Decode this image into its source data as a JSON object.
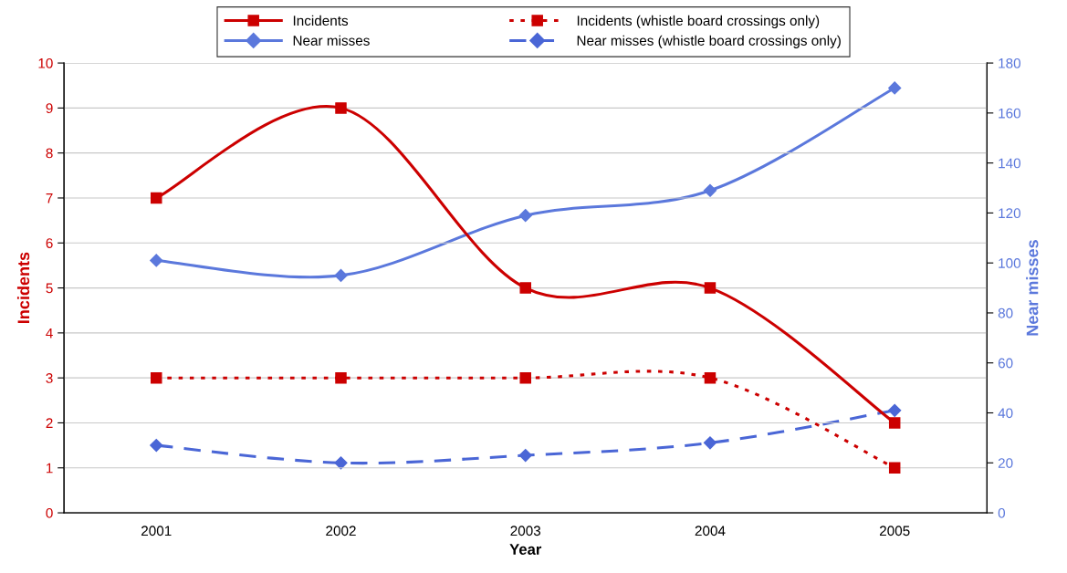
{
  "chart_data": {
    "type": "line",
    "xlabel": "Year",
    "ylabel": "Incidents",
    "y2label": "Near misses",
    "categories": [
      "2001",
      "2002",
      "2003",
      "2004",
      "2005"
    ],
    "series": [
      {
        "name": "Incidents",
        "color": "#cc0000",
        "values": [
          7,
          9,
          5,
          5,
          2
        ],
        "marker": "square",
        "line_style": "solid"
      },
      {
        "name": "Near misses",
        "color": "#5b78dc",
        "values": [
          101,
          95,
          119,
          129,
          170
        ],
        "marker": "diamond",
        "line_style": "solid",
        "axis": "y2"
      },
      {
        "name": "Incidents (whistle board crossings only)",
        "color": "#cc0000",
        "values": [
          3,
          3,
          3,
          3,
          1
        ],
        "marker": "square",
        "line_style": "dotted"
      },
      {
        "name": "Near misses (whistle board crossings only)",
        "color": "#4a66d6",
        "values": [
          27,
          20,
          23,
          28,
          41
        ],
        "marker": "diamond",
        "line_style": "dashed",
        "axis": "y2"
      }
    ],
    "ylim": [
      0,
      10
    ],
    "yticks": [
      0,
      1,
      2,
      3,
      4,
      5,
      6,
      7,
      8,
      9,
      10
    ],
    "y2lim": [
      0,
      180
    ],
    "y2ticks": [
      0,
      20,
      40,
      60,
      80,
      100,
      120,
      140,
      160,
      180
    ],
    "grid": "y",
    "legend": "top"
  }
}
